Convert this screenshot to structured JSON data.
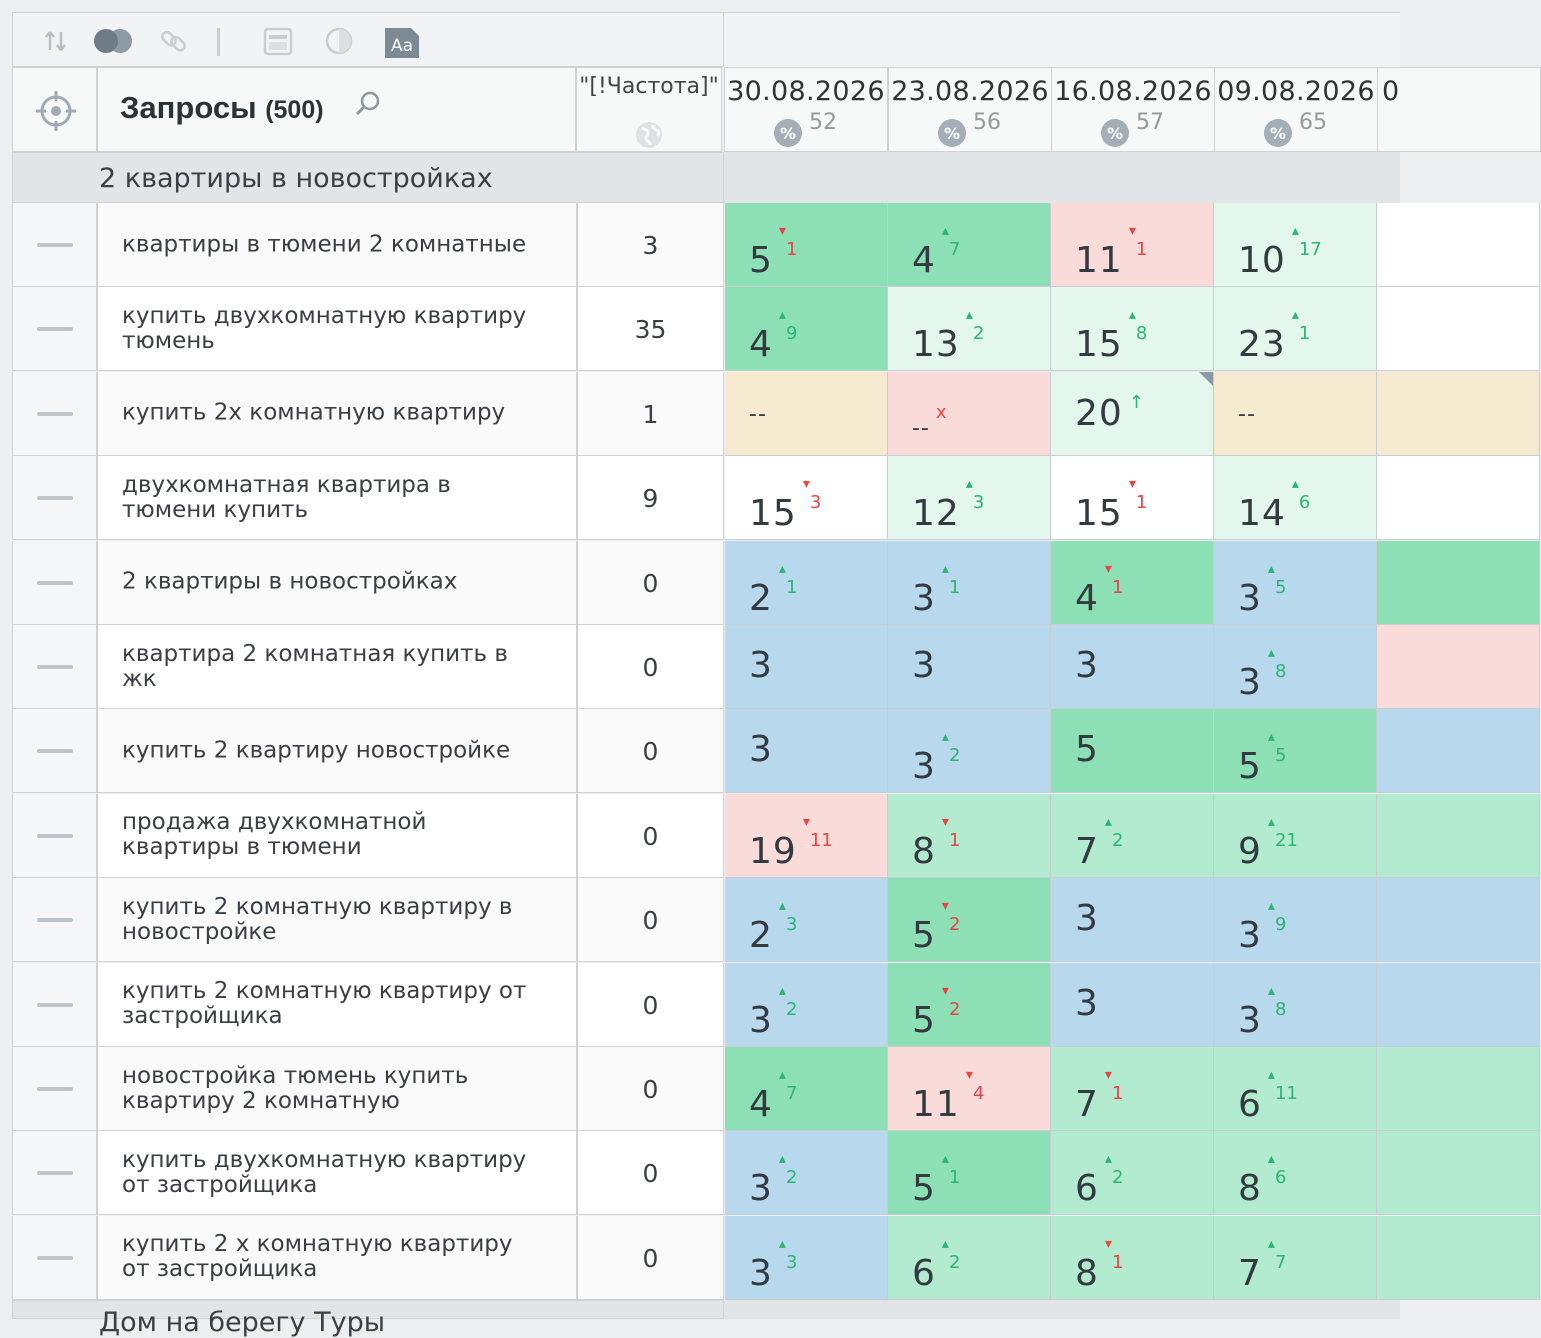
{
  "toolbar": {
    "icons": [
      "sort-icon",
      "toggle-icon",
      "link-icon",
      "separator",
      "calendar-icon",
      "contrast-icon",
      "font-icon"
    ],
    "font_icon_label": "Aa"
  },
  "header": {
    "title": "Запросы",
    "count": "(500)",
    "freq_label": "\"[!Частота]\"",
    "dates": [
      {
        "date": "30.08.2026",
        "pct": "52"
      },
      {
        "date": "23.08.2026",
        "pct": "56"
      },
      {
        "date": "16.08.2026",
        "pct": "57"
      },
      {
        "date": "09.08.2026",
        "pct": "65"
      },
      {
        "date": "0",
        "pct": ""
      }
    ]
  },
  "group": {
    "label": "2 квартиры в новостройках"
  },
  "bottom_group": {
    "label": "Дом на берегу Туры"
  },
  "colors": {
    "green_dark": "#8de0b6",
    "green_mid": "#b2ebcf",
    "green_light": "#e3f7ec",
    "blue": "#b8d8ee",
    "pink": "#f9dbd9",
    "yellow": "#f5ead0",
    "white": "#ffffff"
  },
  "rows": [
    {
      "query": "квартиры в тюмени 2 комнатные",
      "freq": "3",
      "cells": [
        {
          "v": "5",
          "d": "1",
          "dir": "down",
          "c": "green_dark"
        },
        {
          "v": "4",
          "d": "7",
          "dir": "up",
          "c": "green_dark"
        },
        {
          "v": "11",
          "d": "1",
          "dir": "down",
          "c": "pink"
        },
        {
          "v": "10",
          "d": "17",
          "dir": "up",
          "c": "green_light"
        },
        {
          "v": "",
          "d": "",
          "dir": "",
          "c": "white"
        }
      ]
    },
    {
      "query": "купить двухкомнатную квартиру тюмень",
      "freq": "35",
      "cells": [
        {
          "v": "4",
          "d": "9",
          "dir": "up",
          "c": "green_dark"
        },
        {
          "v": "13",
          "d": "2",
          "dir": "up",
          "c": "green_light"
        },
        {
          "v": "15",
          "d": "8",
          "dir": "up",
          "c": "green_light"
        },
        {
          "v": "23",
          "d": "1",
          "dir": "up",
          "c": "green_light"
        },
        {
          "v": "",
          "d": "",
          "dir": "",
          "c": "white"
        }
      ]
    },
    {
      "query": "купить 2х комнатную квартиру",
      "freq": "1",
      "cells": [
        {
          "v": "--",
          "d": "",
          "dir": "",
          "c": "yellow"
        },
        {
          "v": "--",
          "d": "x",
          "dir": "down",
          "c": "pink"
        },
        {
          "v": "20",
          "d": "↑",
          "dir": "up",
          "c": "green_light",
          "corner": true
        },
        {
          "v": "--",
          "d": "",
          "dir": "",
          "c": "yellow"
        },
        {
          "v": "",
          "d": "",
          "dir": "",
          "c": "yellow"
        }
      ]
    },
    {
      "query": "двухкомнатная квартира в тюмени купить",
      "freq": "9",
      "cells": [
        {
          "v": "15",
          "d": "3",
          "dir": "down",
          "c": "white"
        },
        {
          "v": "12",
          "d": "3",
          "dir": "up",
          "c": "green_light"
        },
        {
          "v": "15",
          "d": "1",
          "dir": "down",
          "c": "white"
        },
        {
          "v": "14",
          "d": "6",
          "dir": "up",
          "c": "green_light"
        },
        {
          "v": "",
          "d": "",
          "dir": "",
          "c": "white"
        }
      ]
    },
    {
      "query": "2 квартиры в новостройках",
      "freq": "0",
      "cells": [
        {
          "v": "2",
          "d": "1",
          "dir": "up",
          "c": "blue"
        },
        {
          "v": "3",
          "d": "1",
          "dir": "up",
          "c": "blue"
        },
        {
          "v": "4",
          "d": "1",
          "dir": "down",
          "c": "green_dark"
        },
        {
          "v": "3",
          "d": "5",
          "dir": "up",
          "c": "blue"
        },
        {
          "v": "",
          "d": "",
          "dir": "",
          "c": "green_dark"
        }
      ]
    },
    {
      "query": "квартира 2 комнатная купить в жк",
      "freq": "0",
      "cells": [
        {
          "v": "3",
          "d": "",
          "dir": "",
          "c": "blue"
        },
        {
          "v": "3",
          "d": "",
          "dir": "",
          "c": "blue"
        },
        {
          "v": "3",
          "d": "",
          "dir": "",
          "c": "blue"
        },
        {
          "v": "3",
          "d": "8",
          "dir": "up",
          "c": "blue"
        },
        {
          "v": "",
          "d": "",
          "dir": "",
          "c": "pink"
        }
      ]
    },
    {
      "query": "купить 2 квартиру новостройке",
      "freq": "0",
      "cells": [
        {
          "v": "3",
          "d": "",
          "dir": "",
          "c": "blue"
        },
        {
          "v": "3",
          "d": "2",
          "dir": "up",
          "c": "blue"
        },
        {
          "v": "5",
          "d": "",
          "dir": "",
          "c": "green_dark"
        },
        {
          "v": "5",
          "d": "5",
          "dir": "up",
          "c": "green_dark"
        },
        {
          "v": "",
          "d": "",
          "dir": "",
          "c": "blue"
        }
      ]
    },
    {
      "query": "продажа двухкомнатной квартиры в тюмени",
      "freq": "0",
      "cells": [
        {
          "v": "19",
          "d": "11",
          "dir": "down",
          "c": "pink"
        },
        {
          "v": "8",
          "d": "1",
          "dir": "down",
          "c": "green_mid"
        },
        {
          "v": "7",
          "d": "2",
          "dir": "up",
          "c": "green_mid"
        },
        {
          "v": "9",
          "d": "21",
          "dir": "up",
          "c": "green_mid"
        },
        {
          "v": "",
          "d": "",
          "dir": "",
          "c": "green_mid"
        }
      ]
    },
    {
      "query": "купить 2 комнатную квартиру в новостройке",
      "freq": "0",
      "cells": [
        {
          "v": "2",
          "d": "3",
          "dir": "up",
          "c": "blue"
        },
        {
          "v": "5",
          "d": "2",
          "dir": "down",
          "c": "green_dark"
        },
        {
          "v": "3",
          "d": "",
          "dir": "",
          "c": "blue"
        },
        {
          "v": "3",
          "d": "9",
          "dir": "up",
          "c": "blue"
        },
        {
          "v": "",
          "d": "",
          "dir": "",
          "c": "blue"
        }
      ]
    },
    {
      "query": "купить 2 комнатную квартиру от застройщика",
      "freq": "0",
      "cells": [
        {
          "v": "3",
          "d": "2",
          "dir": "up",
          "c": "blue"
        },
        {
          "v": "5",
          "d": "2",
          "dir": "down",
          "c": "green_dark"
        },
        {
          "v": "3",
          "d": "",
          "dir": "",
          "c": "blue"
        },
        {
          "v": "3",
          "d": "8",
          "dir": "up",
          "c": "blue"
        },
        {
          "v": "",
          "d": "",
          "dir": "",
          "c": "blue"
        }
      ]
    },
    {
      "query": "новостройка тюмень купить квартиру 2 комнатную",
      "freq": "0",
      "cells": [
        {
          "v": "4",
          "d": "7",
          "dir": "up",
          "c": "green_dark"
        },
        {
          "v": "11",
          "d": "4",
          "dir": "down",
          "c": "pink"
        },
        {
          "v": "7",
          "d": "1",
          "dir": "down",
          "c": "green_mid"
        },
        {
          "v": "6",
          "d": "11",
          "dir": "up",
          "c": "green_mid"
        },
        {
          "v": "",
          "d": "",
          "dir": "",
          "c": "green_mid"
        }
      ]
    },
    {
      "query": "купить двухкомнатную квартиру от застройщика",
      "freq": "0",
      "cells": [
        {
          "v": "3",
          "d": "2",
          "dir": "up",
          "c": "blue"
        },
        {
          "v": "5",
          "d": "1",
          "dir": "up",
          "c": "green_dark"
        },
        {
          "v": "6",
          "d": "2",
          "dir": "up",
          "c": "green_mid"
        },
        {
          "v": "8",
          "d": "6",
          "dir": "up",
          "c": "green_mid"
        },
        {
          "v": "",
          "d": "",
          "dir": "",
          "c": "green_mid"
        }
      ]
    },
    {
      "query": "купить 2 х комнатную квартиру от застройщика",
      "freq": "0",
      "cells": [
        {
          "v": "3",
          "d": "3",
          "dir": "up",
          "c": "blue"
        },
        {
          "v": "6",
          "d": "2",
          "dir": "up",
          "c": "green_mid"
        },
        {
          "v": "8",
          "d": "1",
          "dir": "down",
          "c": "green_mid"
        },
        {
          "v": "7",
          "d": "7",
          "dir": "up",
          "c": "green_mid"
        },
        {
          "v": "",
          "d": "",
          "dir": "",
          "c": "green_mid"
        }
      ]
    }
  ]
}
